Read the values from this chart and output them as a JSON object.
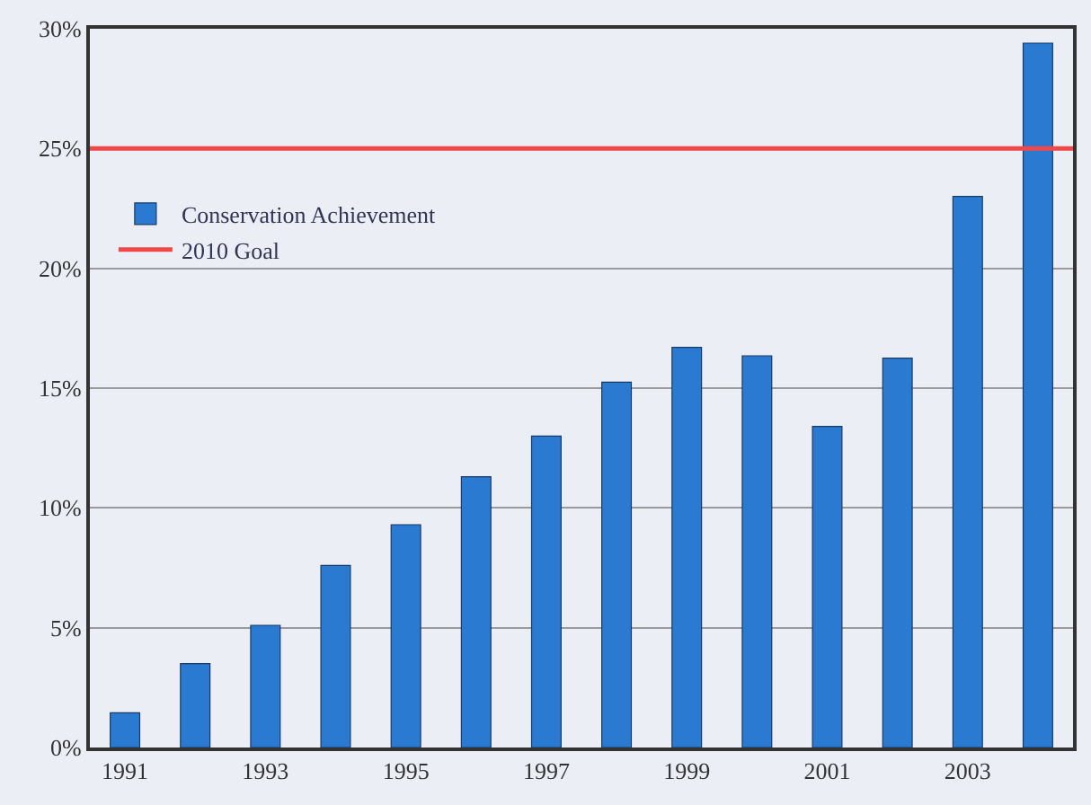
{
  "chart_data": {
    "type": "bar",
    "categories": [
      "1991",
      null,
      "1993",
      null,
      "1995",
      null,
      "1997",
      null,
      "1999",
      null,
      "2001",
      null,
      "2003",
      null
    ],
    "series": [
      {
        "name": "Conservation Achievement",
        "color": "#2a7ad2",
        "values": [
          1.45,
          3.5,
          5.1,
          7.6,
          9.3,
          11.3,
          13.0,
          15.25,
          16.7,
          16.35,
          13.4,
          16.25,
          23.0,
          29.4
        ]
      }
    ],
    "ylim": [
      0,
      30
    ],
    "yticks": [
      {
        "value": 0,
        "label": "0%"
      },
      {
        "value": 5,
        "label": "5%"
      },
      {
        "value": 10,
        "label": "10%"
      },
      {
        "value": 15,
        "label": "15%"
      },
      {
        "value": 20,
        "label": "20%"
      },
      {
        "value": 25,
        "label": "25%"
      },
      {
        "value": 30,
        "label": "30%"
      }
    ],
    "ref_lines": [
      {
        "axis": "y",
        "value": 25,
        "label": "2010 Goal",
        "color": "#f04848"
      }
    ],
    "grid": "y",
    "legend": "top left"
  }
}
